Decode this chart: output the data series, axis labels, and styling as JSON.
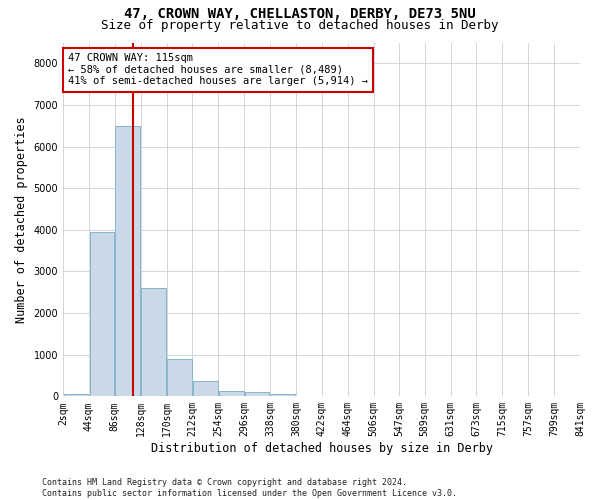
{
  "title_line1": "47, CROWN WAY, CHELLASTON, DERBY, DE73 5NU",
  "title_line2": "Size of property relative to detached houses in Derby",
  "xlabel": "Distribution of detached houses by size in Derby",
  "ylabel": "Number of detached properties",
  "footnote": "Contains HM Land Registry data © Crown copyright and database right 2024.\nContains public sector information licensed under the Open Government Licence v3.0.",
  "bin_edges": [
    2,
    44,
    86,
    128,
    170,
    212,
    254,
    296,
    338,
    380,
    422,
    464,
    506,
    547,
    589,
    631,
    673,
    715,
    757,
    799,
    841
  ],
  "bar_heights": [
    50,
    3950,
    6500,
    2600,
    900,
    380,
    130,
    100,
    60,
    0,
    0,
    0,
    0,
    0,
    0,
    0,
    0,
    0,
    0,
    0
  ],
  "bar_color": "#c9d9e8",
  "bar_edgecolor": "#8ab4cc",
  "property_size": 115,
  "property_line_color": "#cc0000",
  "annotation_text": "47 CROWN WAY: 115sqm\n← 58% of detached houses are smaller (8,489)\n41% of semi-detached houses are larger (5,914) →",
  "annotation_box_color": "#ffffff",
  "annotation_box_edgecolor": "#cc0000",
  "ylim": [
    0,
    8500
  ],
  "yticks": [
    0,
    1000,
    2000,
    3000,
    4000,
    5000,
    6000,
    7000,
    8000
  ],
  "background_color": "#ffffff",
  "grid_color": "#c8d0dc",
  "title_fontsize": 10,
  "subtitle_fontsize": 9,
  "axis_label_fontsize": 8.5,
  "tick_fontsize": 7,
  "annotation_fontsize": 7.5,
  "footnote_fontsize": 6
}
